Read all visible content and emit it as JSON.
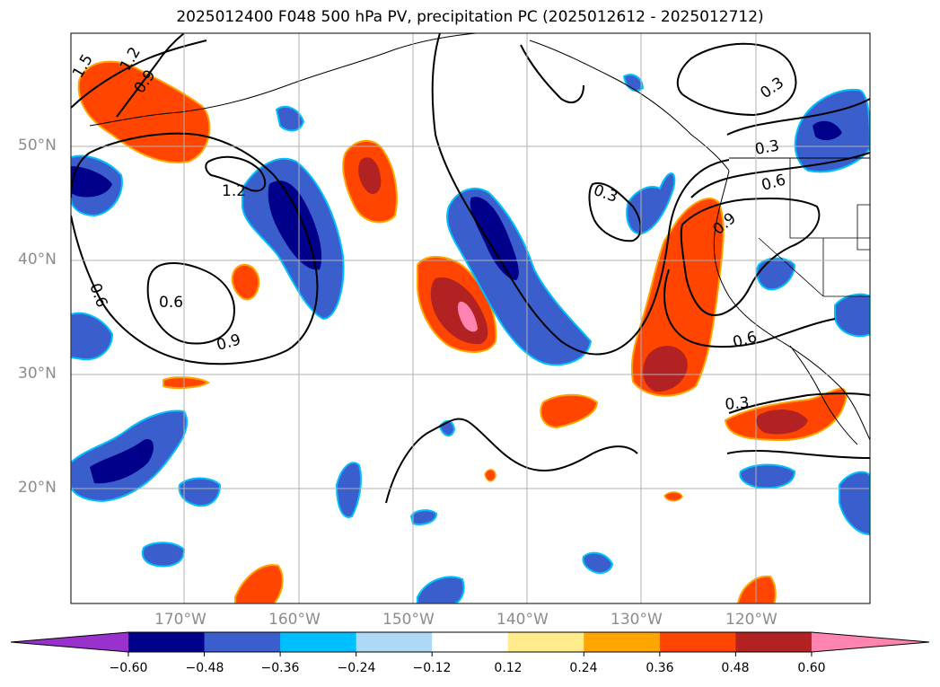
{
  "figure": {
    "title": "2025012400 F048 500 hPa PV, precipitation PC (2025012612 - 2025012712)",
    "lon_labels": [
      "170°W",
      "160°W",
      "150°W",
      "140°W",
      "130°W",
      "120°W"
    ],
    "lat_labels": [
      "50°N",
      "40°N",
      "30°N",
      "20°N"
    ],
    "contour_labels": [
      "1.5",
      "1.2",
      "0.9",
      "1.2",
      "0.6",
      "0.6",
      "0.9",
      "0.3",
      "0.3",
      "0.3",
      "0.6",
      "0.9",
      "0.6",
      "0.3"
    ],
    "colorbar": {
      "tick_labels": [
        "−0.60",
        "−0.48",
        "−0.36",
        "−0.24",
        "−0.12",
        "0.12",
        "0.24",
        "0.36",
        "0.48",
        "0.60"
      ],
      "colors": [
        "#9932cc",
        "#00008b",
        "#3a5fcd",
        "#00bfff",
        "#add8f6",
        "#ffffff",
        "#ffeb8c",
        "#ffa500",
        "#ff4500",
        "#b22222",
        "#ff85b0"
      ]
    }
  },
  "chart_data": {
    "type": "heatmap",
    "title": "2025012400 F048 500 hPa PV, precipitation PC (2025012612 - 2025012712)",
    "variable_filled": "precipitation PC",
    "variable_contoured": "500 hPa PV",
    "lon_range": [
      -180,
      -110
    ],
    "lat_range": [
      10,
      60
    ],
    "x_ticks": [
      "170°W",
      "160°W",
      "150°W",
      "140°W",
      "130°W",
      "120°W"
    ],
    "y_ticks": [
      "50°N",
      "40°N",
      "30°N",
      "20°N"
    ],
    "grid": true,
    "contour_levels": [
      0.3,
      0.6,
      0.9,
      1.2,
      1.5
    ],
    "color_levels": [
      -0.6,
      -0.48,
      -0.36,
      -0.24,
      -0.12,
      0.12,
      0.24,
      0.36,
      0.48,
      0.6
    ],
    "colorbar_extend": "both"
  }
}
